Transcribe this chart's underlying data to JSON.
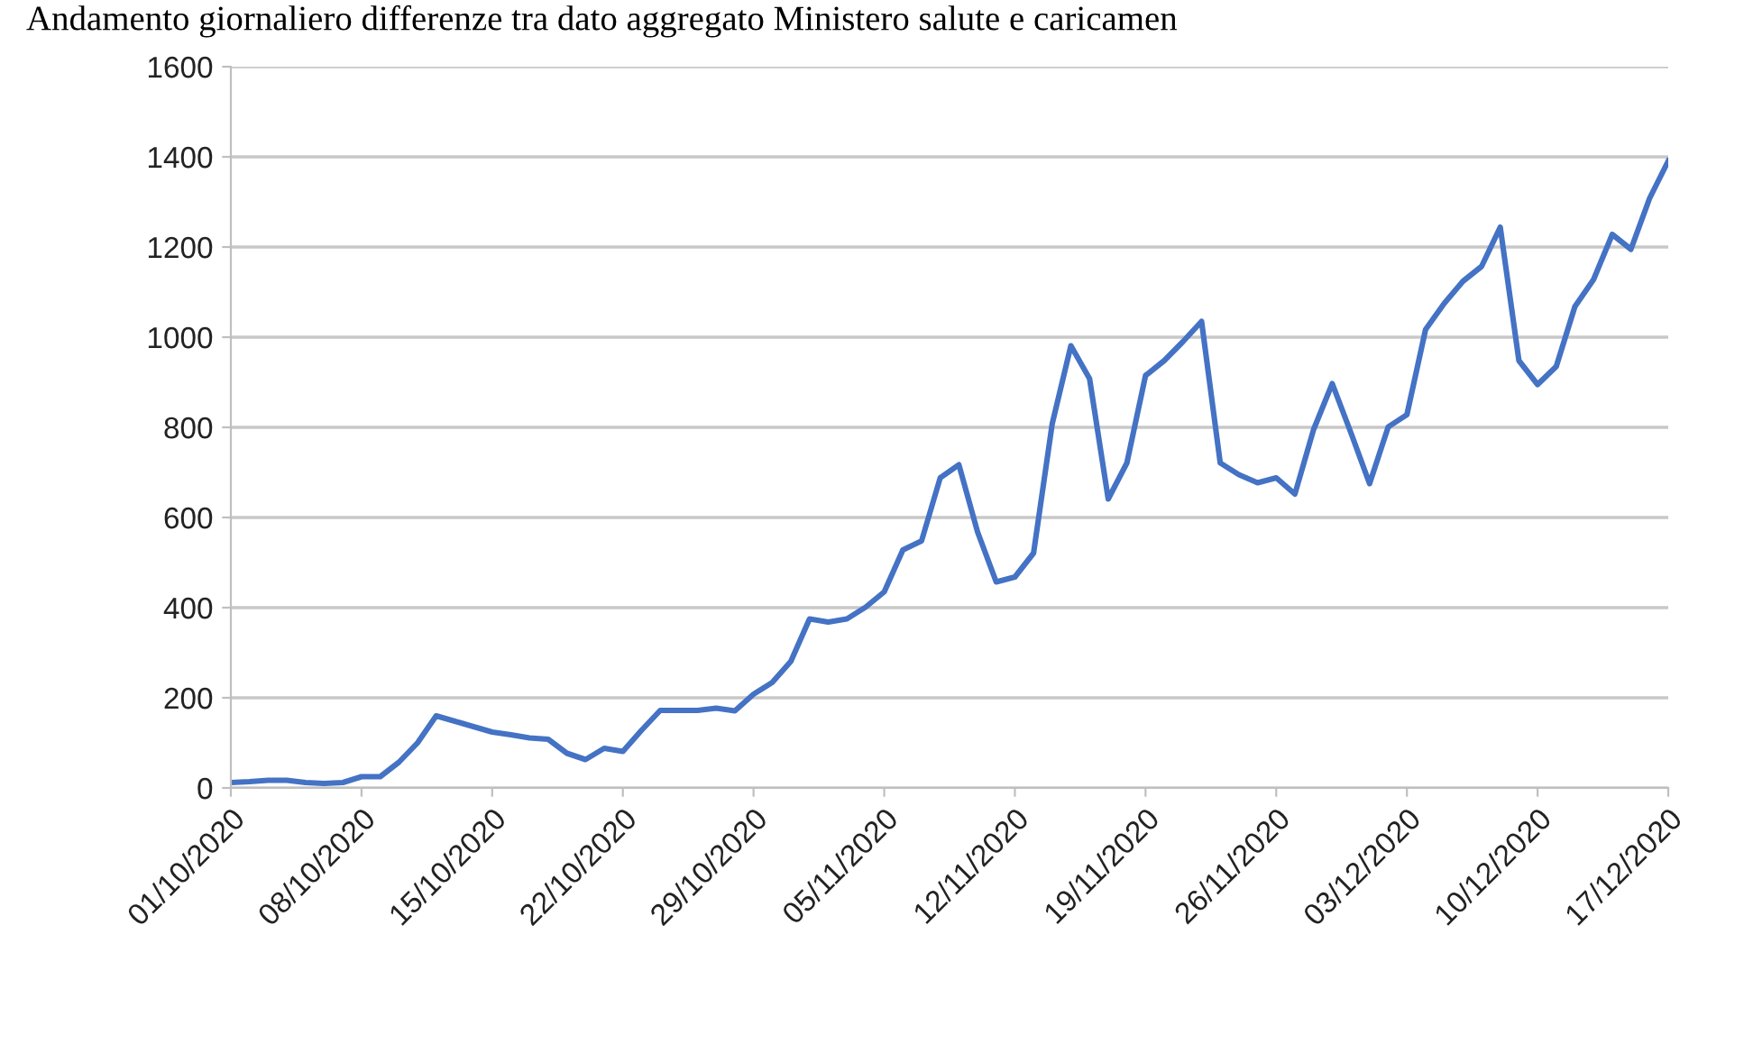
{
  "chart_data": {
    "type": "line",
    "title": "Andamento giornaliero differenze tra dato aggregato Ministero salute e caricamen",
    "x": [
      "2020-10-01",
      "2020-10-02",
      "2020-10-03",
      "2020-10-04",
      "2020-10-05",
      "2020-10-06",
      "2020-10-07",
      "2020-10-08",
      "2020-10-09",
      "2020-10-10",
      "2020-10-11",
      "2020-10-12",
      "2020-10-13",
      "2020-10-14",
      "2020-10-15",
      "2020-10-16",
      "2020-10-17",
      "2020-10-18",
      "2020-10-19",
      "2020-10-20",
      "2020-10-21",
      "2020-10-22",
      "2020-10-23",
      "2020-10-24",
      "2020-10-25",
      "2020-10-26",
      "2020-10-27",
      "2020-10-28",
      "2020-10-29",
      "2020-10-30",
      "2020-10-31",
      "2020-11-01",
      "2020-11-02",
      "2020-11-03",
      "2020-11-04",
      "2020-11-05",
      "2020-11-06",
      "2020-11-07",
      "2020-11-08",
      "2020-11-09",
      "2020-11-10",
      "2020-11-11",
      "2020-11-12",
      "2020-11-13",
      "2020-11-14",
      "2020-11-15",
      "2020-11-16",
      "2020-11-17",
      "2020-11-18",
      "2020-11-19",
      "2020-11-20",
      "2020-11-21",
      "2020-11-22",
      "2020-11-23",
      "2020-11-24",
      "2020-11-25",
      "2020-11-26",
      "2020-11-27",
      "2020-11-28",
      "2020-11-29",
      "2020-11-30",
      "2020-12-01",
      "2020-12-02",
      "2020-12-03",
      "2020-12-04",
      "2020-12-05",
      "2020-12-06",
      "2020-12-07",
      "2020-12-08",
      "2020-12-09",
      "2020-12-10",
      "2020-12-11",
      "2020-12-12",
      "2020-12-13",
      "2020-12-14",
      "2020-12-15",
      "2020-12-16",
      "2020-12-17"
    ],
    "series": [
      {
        "color": "#4472c4",
        "values": [
          12,
          14,
          17,
          17,
          12,
          10,
          12,
          25,
          25,
          57,
          100,
          160,
          148,
          136,
          124,
          118,
          111,
          108,
          77,
          63,
          88,
          81,
          128,
          172,
          172,
          172,
          177,
          171,
          208,
          234,
          281,
          375,
          368,
          375,
          401,
          435,
          528,
          548,
          688,
          717,
          568,
          457,
          468,
          521,
          808,
          981,
          908,
          641,
          721,
          915,
          948,
          990,
          1035,
          721,
          695,
          677,
          688,
          652,
          795,
          897,
          788,
          675,
          801,
          828,
          1017,
          1075,
          1124,
          1157,
          1244,
          948,
          895,
          935,
          1068,
          1128,
          1228,
          1195,
          1308,
          1391
        ]
      }
    ],
    "xlim": [
      "2020-10-01",
      "2020-12-17"
    ],
    "xticks": [
      {
        "value": "2020-10-01",
        "label": "01/10/2020"
      },
      {
        "value": "2020-10-08",
        "label": "08/10/2020"
      },
      {
        "value": "2020-10-15",
        "label": "15/10/2020"
      },
      {
        "value": "2020-10-22",
        "label": "22/10/2020"
      },
      {
        "value": "2020-10-29",
        "label": "29/10/2020"
      },
      {
        "value": "2020-11-05",
        "label": "05/11/2020"
      },
      {
        "value": "2020-11-12",
        "label": "12/11/2020"
      },
      {
        "value": "2020-11-19",
        "label": "19/11/2020"
      },
      {
        "value": "2020-11-26",
        "label": "26/11/2020"
      },
      {
        "value": "2020-12-03",
        "label": "03/12/2020"
      },
      {
        "value": "2020-12-10",
        "label": "10/12/2020"
      },
      {
        "value": "2020-12-17",
        "label": "17/12/2020"
      }
    ],
    "ylim": [
      0,
      1600
    ],
    "yticks": [
      0,
      200,
      400,
      600,
      800,
      1000,
      1200,
      1400,
      1600
    ],
    "grid": "y",
    "marker": "none",
    "line_style": "solid"
  }
}
